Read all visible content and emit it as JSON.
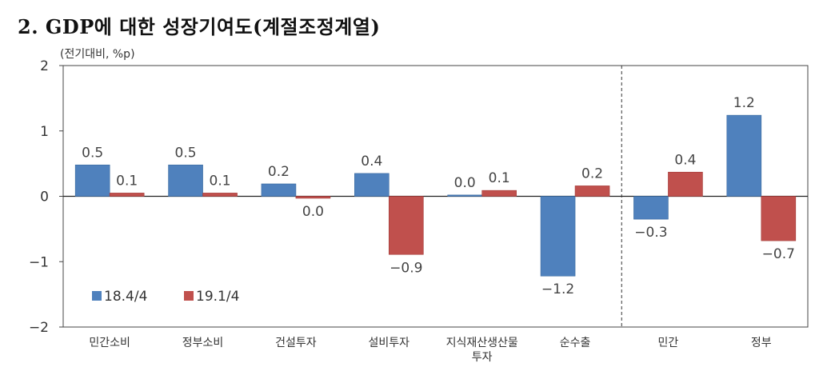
{
  "title": "2. GDP에 대한 성장기여도(계절조정계열)",
  "chart_data": {
    "type": "bar",
    "unit_label": "(전기대비, %p)",
    "categories": [
      "민간소비",
      "정부소비",
      "건설투자",
      "설비투자",
      "지식재산생산물\n투자",
      "순수출",
      "민간",
      "정부"
    ],
    "series": [
      {
        "name": "18.4/4",
        "values": [
          0.5,
          0.5,
          0.2,
          0.4,
          0.0,
          -1.2,
          -0.3,
          1.2
        ],
        "labels": [
          "0.5",
          "0.5",
          "0.2",
          "0.4",
          "0.0",
          "−1.2",
          "−0.3",
          "1.2"
        ]
      },
      {
        "name": "19.1/4",
        "values": [
          0.1,
          0.1,
          0.0,
          -0.9,
          0.1,
          0.2,
          0.4,
          -0.7
        ],
        "labels": [
          "0.1",
          "0.1",
          "0.0",
          "−0.9",
          "0.1",
          "0.2",
          "0.4",
          "−0.7"
        ]
      }
    ],
    "plot_values": {
      "18.4/4": [
        0.48,
        0.48,
        0.19,
        0.35,
        0.02,
        -1.22,
        -0.35,
        1.24
      ],
      "19.1/4": [
        0.05,
        0.05,
        -0.03,
        -0.89,
        0.09,
        0.16,
        0.37,
        -0.68
      ]
    },
    "ylim": [
      -2,
      2
    ],
    "yticks": [
      2,
      1,
      0,
      -1,
      -2
    ],
    "ytick_labels": [
      "2",
      "1",
      "0",
      "−1",
      "−2"
    ],
    "colors": {
      "18.4/4": "#4f81bd",
      "19.1/4": "#c0504d"
    },
    "divider_after_category": 6,
    "legend_position": "lower-left",
    "grid": false
  }
}
